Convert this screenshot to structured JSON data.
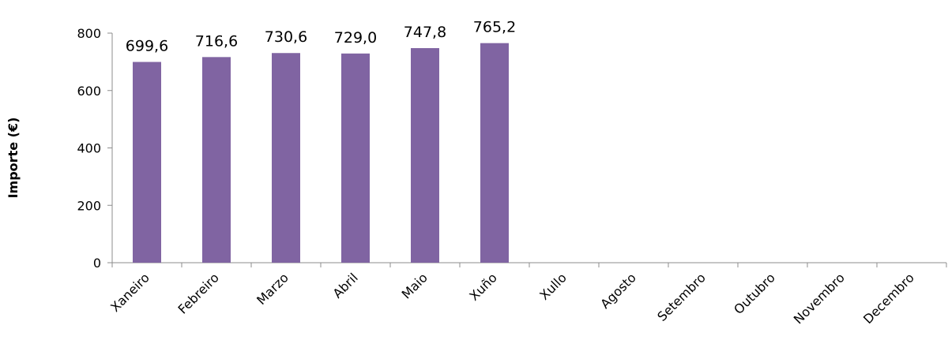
{
  "chart_data": {
    "type": "bar",
    "categories": [
      "Xaneiro",
      "Febreiro",
      "Marzo",
      "Abril",
      "Maio",
      "Xuño",
      "Xullo",
      "Agosto",
      "Setembro",
      "Outubro",
      "Novembro",
      "Decembro"
    ],
    "values": [
      699.6,
      716.6,
      730.6,
      729.0,
      747.8,
      765.2,
      null,
      null,
      null,
      null,
      null,
      null
    ],
    "data_labels": [
      "699,6",
      "716,6",
      "730,6",
      "729,0",
      "747,8",
      "765,2",
      "",
      "",
      "",
      "",
      "",
      ""
    ],
    "yticks": [
      0,
      200,
      400,
      600,
      800
    ],
    "ylim": [
      0,
      800
    ],
    "ylabel": "Importe (€)",
    "xlabel": "",
    "title": "",
    "grid": false,
    "bar_color": "#8064a2"
  }
}
